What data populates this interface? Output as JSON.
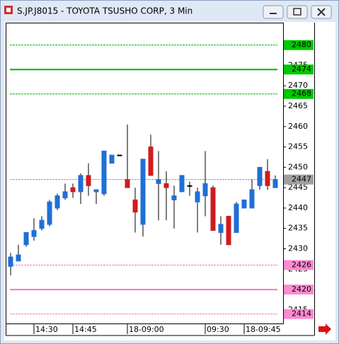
{
  "chart_data": {
    "type": "candlestick",
    "title": "S.JP.J8015 - TOYOTA TSUSHO CORP, 3 Min",
    "categories": [
      null,
      null,
      null,
      "14:30",
      null,
      null,
      null,
      null,
      "14:45",
      null,
      null,
      null,
      null,
      null,
      null,
      "18-09:00",
      null,
      null,
      null,
      null,
      null,
      null,
      null,
      null,
      null,
      "09:30",
      null,
      null,
      null,
      null,
      "18-09:45",
      null,
      null,
      null,
      null
    ],
    "open": [
      2425.7,
      2427,
      2431,
      2433,
      2435,
      2436,
      2440,
      2442.5,
      2445,
      2444,
      2448,
      2444,
      2443.5,
      2451,
      2453,
      2447,
      2442,
      2436,
      2455,
      2446,
      2446,
      2442,
      2444,
      2445.5,
      2441.5,
      2443,
      2445,
      2434,
      2438,
      2434,
      2440,
      2440,
      2445.5,
      2449,
      2445
    ],
    "high": [
      2429,
      2431,
      2434,
      2437.5,
      2438,
      2442,
      2443.5,
      2446,
      2446,
      2448.5,
      2451,
      2444.5,
      2454,
      2453,
      2453,
      2460.5,
      2445,
      2452,
      2458,
      2454,
      2449,
      2445.5,
      2448,
      2446.5,
      2445,
      2454,
      2445.5,
      2438,
      2438,
      2441.5,
      2442,
      2447,
      2450,
      2452,
      2448
    ],
    "low": [
      2423.5,
      2427,
      2430.5,
      2432,
      2434.5,
      2435.5,
      2439.5,
      2442,
      2442.5,
      2441,
      2443,
      2441,
      2443,
      2451,
      2453,
      2445,
      2434,
      2433,
      2448,
      2437,
      2437,
      2435,
      2444,
      2443,
      2434,
      2438,
      2434.5,
      2431,
      2431,
      2434,
      2440,
      2440,
      2444.5,
      2444.5,
      2445
    ],
    "close": [
      2428,
      2428.5,
      2434,
      2434.5,
      2437,
      2441.5,
      2443,
      2444,
      2444,
      2448,
      2445.5,
      2444.5,
      2454,
      2453,
      2453,
      2445,
      2439,
      2452,
      2448,
      2447,
      2445,
      2443,
      2448,
      2445.5,
      2444,
      2446,
      2434.5,
      2436,
      2431,
      2441,
      2442,
      2444.5,
      2450,
      2445.5,
      2447
    ],
    "up_color": "#1f6fd6",
    "down_color": "#d01c1c",
    "ylim": [
      2411.5,
      2485.5
    ],
    "yticks": [
      2415,
      2420,
      2425,
      2430,
      2435,
      2440,
      2445,
      2450,
      2455,
      2460,
      2465,
      2470,
      2475
    ],
    "levels": [
      {
        "value": 2480,
        "color": "#00b400",
        "style": "dashed"
      },
      {
        "value": 2474,
        "color": "#00b400",
        "style": "solid"
      },
      {
        "value": 2468,
        "color": "#00b400",
        "style": "dashed"
      },
      {
        "value": 2447,
        "color": "#999999",
        "style": "dashed"
      },
      {
        "value": 2426,
        "color": "#f07cc4",
        "style": "dashed"
      },
      {
        "value": 2420,
        "color": "#f07cc4",
        "style": "solid"
      },
      {
        "value": 2414,
        "color": "#f07cc4",
        "style": "dashed"
      }
    ],
    "level_box_colors": [
      "#00c800",
      "#00c800",
      "#00c800",
      "#a0a0a0",
      "#ff8ad0",
      "#ff8ad0",
      "#ff8ad0"
    ]
  }
}
